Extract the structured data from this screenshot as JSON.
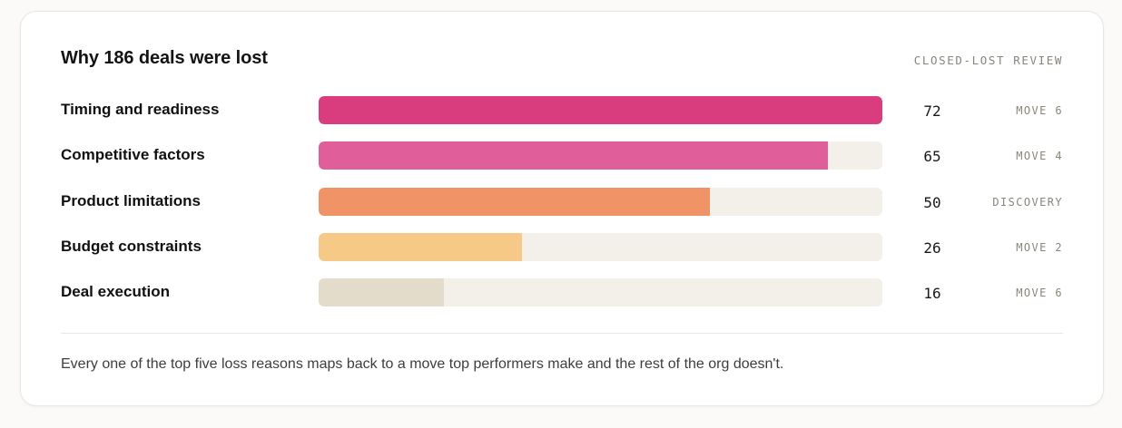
{
  "card": {
    "title": "Why 186 deals were lost",
    "kicker": "CLOSED-LOST REVIEW",
    "footnote": "Every one of the top five loss reasons maps back to a move top performers make and the rest of the org doesn't."
  },
  "colors": {
    "track": "#f3f0ea",
    "bars": [
      "#d93d7e",
      "#e05f9a",
      "#f09468",
      "#f7c987",
      "#e4dccb"
    ]
  },
  "chart_data": {
    "type": "bar",
    "orientation": "horizontal",
    "title": "Why 186 deals were lost",
    "categories": [
      "Timing and readiness",
      "Competitive factors",
      "Product limitations",
      "Budget constraints",
      "Deal execution"
    ],
    "values": [
      72,
      65,
      50,
      26,
      16
    ],
    "tags": [
      "MOVE 6",
      "MOVE 4",
      "DISCOVERY",
      "MOVE 2",
      "MOVE 6"
    ],
    "xlim": [
      0,
      72
    ],
    "grid": false
  }
}
